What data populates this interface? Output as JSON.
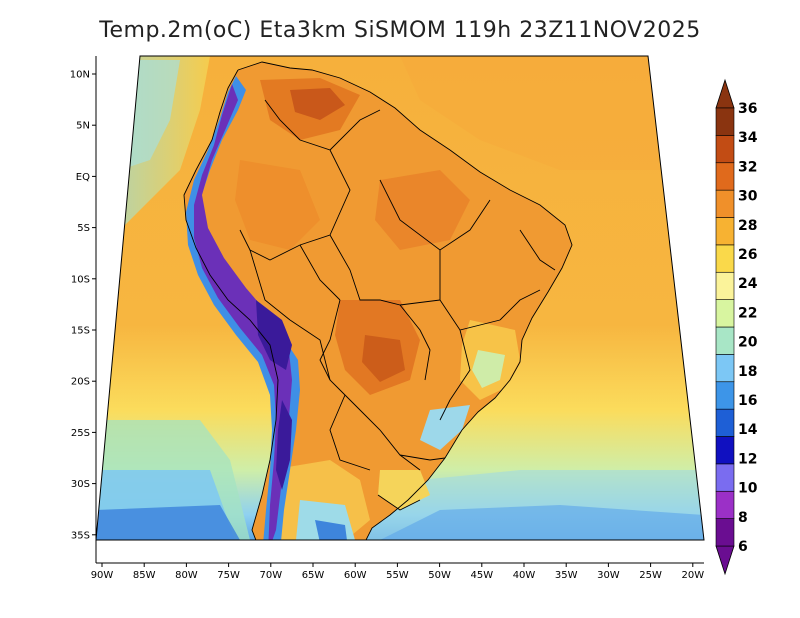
{
  "title": "Temp.2m(oC) Eta3km SiSMOM 119h 23Z11NOV2025",
  "lat_labels": [
    "10N",
    "5N",
    "EQ",
    "5S",
    "10S",
    "15S",
    "20S",
    "25S",
    "30S",
    "35S"
  ],
  "lon_labels": [
    "90W",
    "85W",
    "80W",
    "75W",
    "70W",
    "65W",
    "60W",
    "55W",
    "50W",
    "45W",
    "40W",
    "35W",
    "30W",
    "25W",
    "20W"
  ],
  "colorbar": {
    "labels": [
      "6",
      "8",
      "10",
      "12",
      "14",
      "16",
      "18",
      "20",
      "22",
      "24",
      "26",
      "28",
      "30",
      "32",
      "34",
      "36"
    ],
    "colors": [
      "#6a0d91",
      "#9b30c7",
      "#7a6cf0",
      "#1010c0",
      "#1e5fd6",
      "#3d95e8",
      "#7cc7f5",
      "#a8e6c6",
      "#d8f5a0",
      "#fbf39a",
      "#fad94a",
      "#f7b232",
      "#f0902a",
      "#e06a1c",
      "#c24c14",
      "#8a3410"
    ],
    "min": 6,
    "max": 36
  },
  "palette": {
    "ocean_warm": "#f6ba45",
    "ocean_mid": "#fbe163",
    "ocean_cool": "#b8eab2",
    "ocean_cold": "#7ec9f2",
    "land_hot": "#ef8c2b",
    "land_veryhot": "#d96a1c",
    "andes_cold": "#3a1a9a",
    "andes_mid": "#3f8fe6",
    "border": "#000000"
  }
}
